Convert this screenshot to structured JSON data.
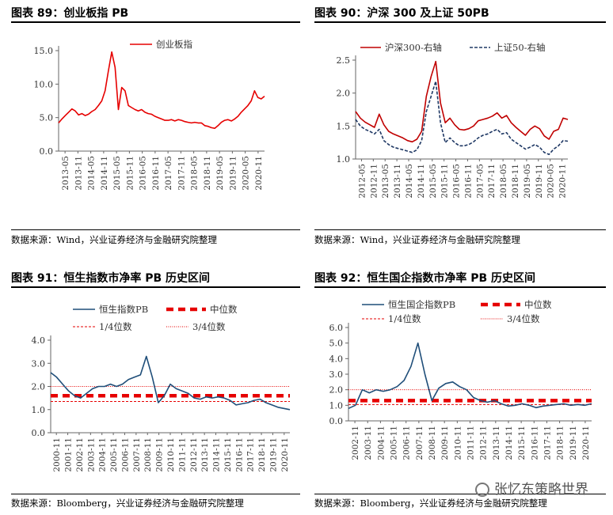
{
  "chart_data": [
    {
      "id": "c89",
      "type": "line",
      "title": "图表 89：创业板指 PB",
      "source": "数据来源：Wind，兴业证券经济与金融研究院整理",
      "legend_position": "top-center",
      "ylim": [
        0,
        15
      ],
      "yticks": [
        "0.0",
        "5.0",
        "10.0",
        "15.0"
      ],
      "ytick_values": [
        0,
        5,
        10,
        15
      ],
      "xticks": [
        "2013-05",
        "2013-11",
        "2014-05",
        "2014-11",
        "2015-05",
        "2015-11",
        "2016-05",
        "2016-11",
        "2017-05",
        "2017-11",
        "2018-05",
        "2018-11",
        "2019-05",
        "2019-11",
        "2020-05",
        "2020-11"
      ],
      "series": [
        {
          "name": "创业板指",
          "color": "#e60000",
          "dash": "",
          "values": [
            4.2,
            4.8,
            5.3,
            5.8,
            6.3,
            6.0,
            5.4,
            5.6,
            5.3,
            5.5,
            5.9,
            6.2,
            6.8,
            7.5,
            9.0,
            12.0,
            14.8,
            12.5,
            6.2,
            9.5,
            9.0,
            6.8,
            6.5,
            6.2,
            6.0,
            6.2,
            5.8,
            5.6,
            5.5,
            5.2,
            5.0,
            4.8,
            4.6,
            4.6,
            4.7,
            4.5,
            4.7,
            4.6,
            4.4,
            4.3,
            4.2,
            4.3,
            4.2,
            4.2,
            3.8,
            3.7,
            3.5,
            3.4,
            3.8,
            4.3,
            4.6,
            4.7,
            4.5,
            4.8,
            5.2,
            5.8,
            6.3,
            6.8,
            7.5,
            9.0,
            8.0,
            7.8,
            8.2
          ]
        }
      ]
    },
    {
      "id": "c90",
      "type": "line",
      "title": "图表 90：沪深 300 及上证 50PB",
      "source": "数据来源：Wind，兴业证券经济与金融研究院整理",
      "legend_position": "top",
      "ylim": [
        1.0,
        2.5
      ],
      "yticks": [
        "1.0",
        "1.5",
        "2.0",
        "2.5"
      ],
      "ytick_values": [
        1.0,
        1.5,
        2.0,
        2.5
      ],
      "xticks": [
        "2012-05",
        "2012-11",
        "2013-05",
        "2013-11",
        "2014-05",
        "2014-11",
        "2015-05",
        "2015-11",
        "2016-05",
        "2016-11",
        "2017-05",
        "2017-11",
        "2018-05",
        "2018-11",
        "2019-05",
        "2019-11",
        "2020-05",
        "2020-11"
      ],
      "series": [
        {
          "name": "沪深300-右轴",
          "color": "#c00000",
          "dash": "",
          "values": [
            1.72,
            1.62,
            1.56,
            1.52,
            1.48,
            1.68,
            1.52,
            1.42,
            1.38,
            1.35,
            1.32,
            1.28,
            1.26,
            1.3,
            1.42,
            1.95,
            2.25,
            2.48,
            1.85,
            1.55,
            1.62,
            1.52,
            1.45,
            1.44,
            1.46,
            1.5,
            1.58,
            1.6,
            1.62,
            1.65,
            1.7,
            1.62,
            1.66,
            1.55,
            1.48,
            1.42,
            1.36,
            1.45,
            1.5,
            1.46,
            1.35,
            1.3,
            1.42,
            1.45,
            1.62,
            1.6
          ]
        },
        {
          "name": "上证50-右轴",
          "color": "#1f3864",
          "dash": "4 2",
          "values": [
            1.6,
            1.5,
            1.45,
            1.42,
            1.38,
            1.45,
            1.28,
            1.22,
            1.18,
            1.16,
            1.14,
            1.12,
            1.1,
            1.14,
            1.28,
            1.72,
            1.95,
            2.18,
            1.55,
            1.25,
            1.32,
            1.25,
            1.2,
            1.2,
            1.22,
            1.26,
            1.32,
            1.36,
            1.38,
            1.42,
            1.45,
            1.38,
            1.4,
            1.3,
            1.25,
            1.2,
            1.15,
            1.18,
            1.22,
            1.18,
            1.1,
            1.07,
            1.15,
            1.2,
            1.28,
            1.27
          ]
        }
      ]
    },
    {
      "id": "c91",
      "type": "line",
      "title": "图表 91：恒生指数市净率 PB 历史区间",
      "source": "数据来源：Bloomberg，兴业证券经济与金融研究院整理",
      "legend_position": "top",
      "ylim": [
        0,
        4
      ],
      "yticks": [
        "0.0",
        "1.0",
        "2.0",
        "3.0",
        "4.0"
      ],
      "ytick_values": [
        0,
        1,
        2,
        3,
        4
      ],
      "xticks": [
        "2000-11",
        "2001-11",
        "2002-11",
        "2003-11",
        "2004-11",
        "2005-11",
        "2006-11",
        "2007-11",
        "2008-11",
        "2009-11",
        "2010-11",
        "2011-11",
        "2012-11",
        "2013-11",
        "2014-11",
        "2015-11",
        "2016-11",
        "2017-11",
        "2018-11",
        "2019-11",
        "2020-11"
      ],
      "reference_lines": [
        {
          "name": "中位数",
          "value": 1.6,
          "color": "#e60000",
          "style": "thick-dash"
        },
        {
          "name": "1/4位数",
          "value": 1.35,
          "color": "#e60000",
          "style": "dash"
        },
        {
          "name": "3/4位数",
          "value": 2.0,
          "color": "#e60000",
          "style": "dot"
        }
      ],
      "series": [
        {
          "name": "恒生指数PB",
          "color": "#1f4e79",
          "dash": "",
          "values": [
            2.6,
            2.4,
            2.1,
            1.8,
            1.6,
            1.5,
            1.7,
            1.9,
            2.0,
            2.0,
            2.1,
            2.0,
            2.1,
            2.3,
            2.4,
            2.5,
            3.3,
            2.4,
            1.3,
            1.6,
            2.1,
            1.9,
            1.8,
            1.7,
            1.5,
            1.45,
            1.55,
            1.5,
            1.55,
            1.5,
            1.4,
            1.2,
            1.25,
            1.3,
            1.4,
            1.45,
            1.3,
            1.2,
            1.1,
            1.05,
            1.0
          ]
        }
      ]
    },
    {
      "id": "c92",
      "type": "line",
      "title": "图表 92：恒生国企指数市净率 PB 历史区间",
      "source": "数据来源：Bloomberg，兴业证券经济与金融研究院整理",
      "legend_position": "top",
      "ylim": [
        0,
        6
      ],
      "yticks": [
        "0.0",
        "1.0",
        "2.0",
        "3.0",
        "4.0",
        "5.0",
        "6.0"
      ],
      "ytick_values": [
        0,
        1,
        2,
        3,
        4,
        5,
        6
      ],
      "xticks": [
        "2002-11",
        "2003-11",
        "2004-11",
        "2005-11",
        "2006-11",
        "2007-11",
        "2008-11",
        "2009-11",
        "2010-11",
        "2011-11",
        "2012-11",
        "2013-11",
        "2014-11",
        "2015-11",
        "2016-11",
        "2017-11",
        "2018-11",
        "2019-11",
        "2020-11"
      ],
      "reference_lines": [
        {
          "name": "中位数",
          "value": 1.3,
          "color": "#e60000",
          "style": "thick-dash"
        },
        {
          "name": "1/4位数",
          "value": 1.05,
          "color": "#e60000",
          "style": "dash"
        },
        {
          "name": "3/4位数",
          "value": 2.0,
          "color": "#e60000",
          "style": "dot"
        }
      ],
      "series": [
        {
          "name": "恒生国企指数PB",
          "color": "#1f4e79",
          "dash": "",
          "values": [
            0.8,
            1.0,
            2.0,
            1.8,
            2.0,
            1.9,
            2.0,
            2.2,
            2.6,
            3.5,
            5.0,
            3.0,
            1.3,
            2.1,
            2.4,
            2.5,
            2.2,
            2.0,
            1.5,
            1.3,
            1.2,
            1.3,
            1.1,
            0.95,
            1.0,
            1.1,
            1.0,
            0.85,
            0.95,
            1.0,
            1.05,
            1.1,
            1.0,
            1.05,
            1.0,
            1.1
          ]
        }
      ]
    }
  ],
  "watermark": {
    "text": "张忆东策略世界",
    "icon": "wechat-icon"
  }
}
